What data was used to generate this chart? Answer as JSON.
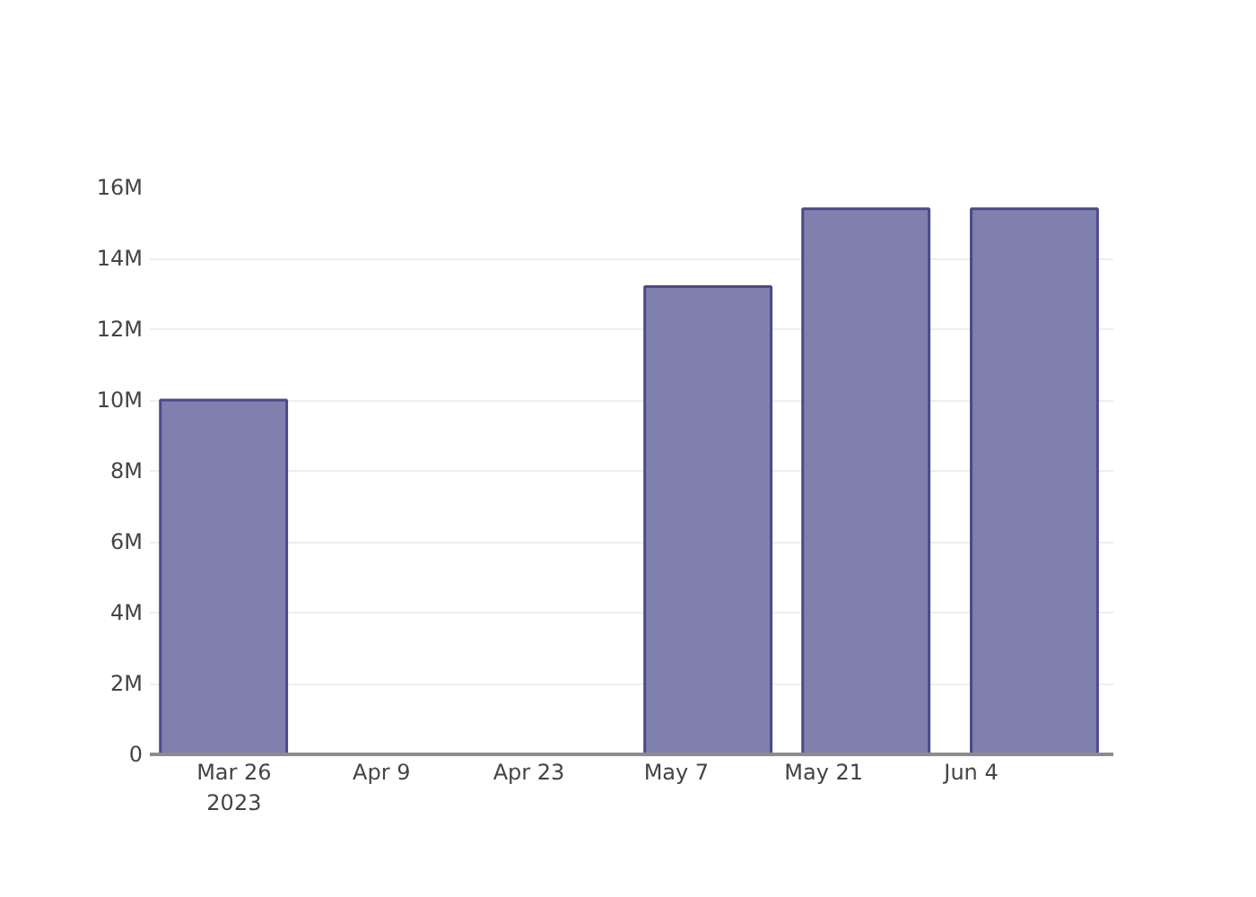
{
  "chart_data": {
    "type": "bar",
    "x": [
      "2023-03-25",
      "2023-05-10",
      "2023-05-25",
      "2023-06-10"
    ],
    "values": [
      10000000,
      13200000,
      15400000,
      15400000
    ],
    "color": "#8080ae",
    "xlim": [
      "2023-03-18",
      "2023-06-17T12:00"
    ],
    "xticks": [
      {
        "value": "2023-03-26",
        "label": "Mar 26\n2023"
      },
      {
        "value": "2023-04-09",
        "label": "Apr 9"
      },
      {
        "value": "2023-04-23",
        "label": "Apr 23"
      },
      {
        "value": "2023-05-07",
        "label": "May 7"
      },
      {
        "value": "2023-05-21",
        "label": "May 21"
      },
      {
        "value": "2023-06-04",
        "label": "Jun 4"
      }
    ],
    "ylim": [
      0,
      16000000
    ],
    "yticks": [
      0,
      {
        "value": 2000000,
        "label": "2M"
      },
      {
        "value": 4000000,
        "label": "4M"
      },
      {
        "value": 6000000,
        "label": "6M"
      },
      {
        "value": 8000000,
        "label": "8M"
      },
      {
        "value": 10000000,
        "label": "10M"
      },
      {
        "value": 12000000,
        "label": "12M"
      },
      {
        "value": 14000000,
        "label": "14M"
      },
      {
        "value": 16000000,
        "label": "16M"
      }
    ],
    "grid": "y"
  }
}
